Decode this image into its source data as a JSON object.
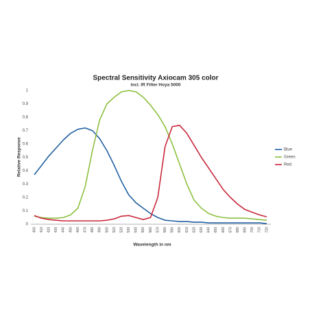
{
  "chart_data": {
    "type": "line",
    "title": "Spectral Sensitivity Axiocam 305 color",
    "subtitle": "incl. IR Filter Hoya 5000",
    "x_label": "Wavelength in nm",
    "y_label": "Relative Response",
    "categories": [
      "400",
      "410",
      "420",
      "430",
      "440",
      "450",
      "460",
      "470",
      "480",
      "490",
      "500",
      "510",
      "520",
      "530",
      "540",
      "550",
      "560",
      "570",
      "580",
      "590",
      "600",
      "610",
      "620",
      "630",
      "640",
      "650",
      "660",
      "670",
      "680",
      "690",
      "700",
      "710",
      "720"
    ],
    "ylim": [
      0,
      1
    ],
    "yticks": [
      0,
      0.1,
      0.2,
      0.3,
      0.4,
      0.5,
      0.6,
      0.7,
      0.8,
      0.9,
      1
    ],
    "grid": false,
    "legend": "right",
    "series": [
      {
        "name": "Blue",
        "color": "#1f5fa0",
        "values": [
          0.37,
          0.44,
          0.51,
          0.57,
          0.63,
          0.68,
          0.71,
          0.72,
          0.7,
          0.64,
          0.55,
          0.44,
          0.32,
          0.22,
          0.16,
          0.12,
          0.08,
          0.05,
          0.03,
          0.025,
          0.02,
          0.02,
          0.015,
          0.015,
          0.01,
          0.01,
          0.01,
          0.01,
          0.01,
          0.01,
          0.01,
          0.01,
          0.005
        ]
      },
      {
        "name": "Green",
        "color": "#8cbf3f",
        "values": [
          0.06,
          0.05,
          0.045,
          0.045,
          0.05,
          0.07,
          0.12,
          0.28,
          0.55,
          0.78,
          0.9,
          0.95,
          0.99,
          1.0,
          0.99,
          0.95,
          0.89,
          0.82,
          0.73,
          0.6,
          0.45,
          0.3,
          0.18,
          0.12,
          0.08,
          0.06,
          0.05,
          0.045,
          0.045,
          0.045,
          0.04,
          0.035,
          0.03
        ]
      },
      {
        "name": "Red",
        "color": "#c8263a",
        "values": [
          0.065,
          0.045,
          0.035,
          0.03,
          0.025,
          0.025,
          0.025,
          0.025,
          0.025,
          0.025,
          0.03,
          0.04,
          0.06,
          0.065,
          0.05,
          0.035,
          0.05,
          0.2,
          0.58,
          0.73,
          0.74,
          0.68,
          0.59,
          0.5,
          0.42,
          0.34,
          0.26,
          0.2,
          0.15,
          0.11,
          0.09,
          0.07,
          0.055
        ]
      }
    ]
  }
}
